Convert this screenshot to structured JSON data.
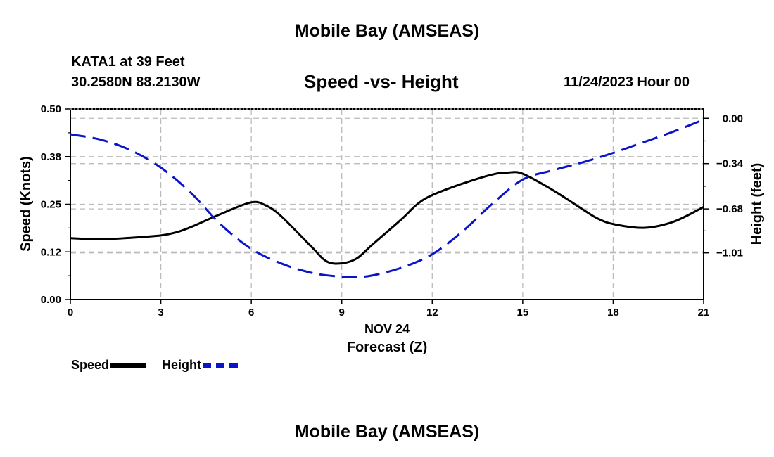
{
  "header": {
    "title": "Mobile Bay (AMSEAS)",
    "station": "KATA1 at 39 Feet",
    "coords": "30.2580N  88.2130W",
    "chart_title": "Speed -vs- Height",
    "datetime": "11/24/2023 Hour 00"
  },
  "footer": {
    "title": "Mobile Bay (AMSEAS)"
  },
  "legend": {
    "speed_label": "Speed",
    "height_label": "Height"
  },
  "colors": {
    "speed": "#000000",
    "height": "#0a14c8",
    "grid": "#bbbbbb"
  },
  "chart_data": {
    "type": "line",
    "title": "Speed -vs- Height",
    "xlabel_date": "NOV 24",
    "xlabel": "Forecast (Z)",
    "ylabel": "Speed (Knots)",
    "y2label": "Height (feet)",
    "xlim": [
      0,
      21
    ],
    "ylim": [
      0,
      0.5
    ],
    "y2lim": [
      -1.36,
      0.07
    ],
    "x_ticks": [
      0,
      3,
      6,
      9,
      12,
      15,
      18,
      21
    ],
    "x_tick_labels": [
      "0",
      "3",
      "6",
      "9",
      "12",
      "15",
      "18",
      "21"
    ],
    "y_ticks": [
      0,
      0.125,
      0.25,
      0.375,
      0.5
    ],
    "y_tick_labels": [
      "0.00",
      "0.12",
      "0.25",
      "0.38",
      "0.50"
    ],
    "y2_ticks": [
      0,
      -0.34,
      -0.68,
      -1.01
    ],
    "y2_tick_labels": [
      "0.00",
      "−0.34",
      "−0.68",
      "−1.01"
    ],
    "grid": true,
    "legend_position": "bottom-left",
    "series": [
      {
        "name": "Speed",
        "axis": "left",
        "style": "solid",
        "x": [
          0,
          1,
          2,
          3,
          3.5,
          4,
          5,
          6,
          6.5,
          7,
          8,
          8.5,
          9,
          9.5,
          10,
          11,
          11.5,
          12,
          13,
          14,
          14.5,
          15,
          16,
          17,
          17.5,
          18,
          19,
          20,
          21
        ],
        "values": [
          0.161,
          0.158,
          0.162,
          0.168,
          0.176,
          0.19,
          0.225,
          0.255,
          0.246,
          0.218,
          0.138,
          0.1,
          0.095,
          0.108,
          0.143,
          0.212,
          0.25,
          0.274,
          0.304,
          0.328,
          0.333,
          0.33,
          0.287,
          0.236,
          0.212,
          0.198,
          0.188,
          0.204,
          0.243
        ]
      },
      {
        "name": "Height",
        "axis": "right",
        "style": "dashed",
        "x": [
          0,
          1,
          2,
          3,
          4,
          5,
          6,
          7,
          8,
          9,
          9.5,
          10,
          11,
          12,
          13,
          14,
          15,
          16,
          17,
          18,
          19,
          20,
          21
        ],
        "values": [
          -0.12,
          -0.16,
          -0.24,
          -0.37,
          -0.56,
          -0.8,
          -0.98,
          -1.09,
          -1.16,
          -1.19,
          -1.19,
          -1.18,
          -1.12,
          -1.02,
          -0.85,
          -0.64,
          -0.46,
          -0.39,
          -0.33,
          -0.26,
          -0.18,
          -0.1,
          -0.01
        ]
      }
    ]
  }
}
